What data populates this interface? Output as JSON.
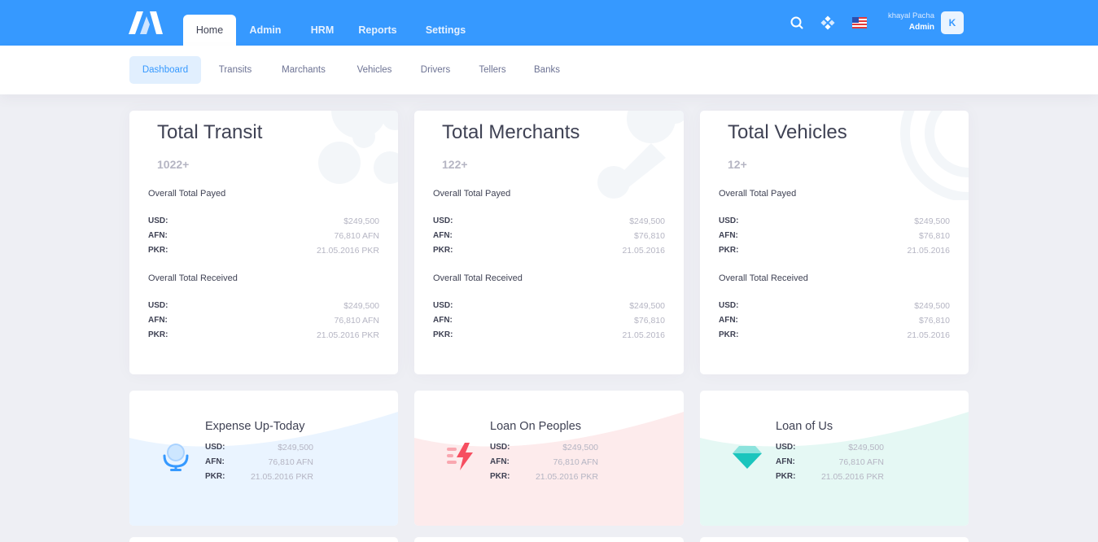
{
  "topbar": {
    "menu": [
      "Home",
      "Admin",
      "HRM",
      "Reports",
      "Settings"
    ],
    "active_menu": "Home",
    "icons": [
      "search-icon",
      "apps-icon",
      "us-flag-icon"
    ],
    "user_name": "khayal Pacha",
    "user_role": "Admin",
    "avatar_letter": "K",
    "color": "#3699ff"
  },
  "subnav": {
    "tabs": [
      "Dashboard",
      "Transits",
      "Marchants",
      "Vehicles",
      "Drivers",
      "Tellers",
      "Banks"
    ],
    "active_tab": "Dashboard"
  },
  "stat_cards": [
    {
      "title": "Total Transit",
      "count": "1022+",
      "payed_label": "Overall Total Payed",
      "received_label": "Overall Total Received",
      "payed": [
        {
          "key": "USD:",
          "value": "$249,500"
        },
        {
          "key": "AFN:",
          "value": "76,810 AFN"
        },
        {
          "key": "PKR:",
          "value": "21.05.2016 PKR"
        }
      ],
      "received": [
        {
          "key": "USD:",
          "value": "$249,500"
        },
        {
          "key": "AFN:",
          "value": "76,810 AFN"
        },
        {
          "key": "PKR:",
          "value": "21.05.2016 PKR"
        }
      ]
    },
    {
      "title": "Total Merchants",
      "count": "122+",
      "payed_label": "Overall Total Payed",
      "received_label": "Overall Total Received",
      "payed": [
        {
          "key": "USD:",
          "value": "$249,500"
        },
        {
          "key": "AFN:",
          "value": "$76,810"
        },
        {
          "key": "PKR:",
          "value": "21.05.2016"
        }
      ],
      "received": [
        {
          "key": "USD:",
          "value": "$249,500"
        },
        {
          "key": "AFN:",
          "value": "$76,810"
        },
        {
          "key": "PKR:",
          "value": "21.05.2016"
        }
      ]
    },
    {
      "title": "Total Vehicles",
      "count": "12+",
      "payed_label": "Overall Total Payed",
      "received_label": "Overall Total Received",
      "payed": [
        {
          "key": "USD:",
          "value": "$249,500"
        },
        {
          "key": "AFN:",
          "value": "$76,810"
        },
        {
          "key": "PKR:",
          "value": "21.05.2016"
        }
      ],
      "received": [
        {
          "key": "USD:",
          "value": "$249,500"
        },
        {
          "key": "AFN:",
          "value": "$76,810"
        },
        {
          "key": "PKR:",
          "value": "21.05.2016"
        }
      ]
    }
  ],
  "summary_cards": [
    {
      "title": "Expense Up-Today",
      "icon": "mirror-stand-icon",
      "color": "#3699ff",
      "bg": "#eaf4ff",
      "rows": [
        {
          "key": "USD:",
          "value": "$249,500"
        },
        {
          "key": "AFN:",
          "value": "76,810 AFN"
        },
        {
          "key": "PKR:",
          "value": "21.05.2016 PKR"
        }
      ]
    },
    {
      "title": "Loan On Peoples",
      "icon": "lightning-icon",
      "color": "#f64e60",
      "bg": "#fdebec",
      "rows": [
        {
          "key": "USD:",
          "value": "$249,500"
        },
        {
          "key": "AFN:",
          "value": "76,810 AFN"
        },
        {
          "key": "PKR:",
          "value": "21.05.2016 PKR"
        }
      ]
    },
    {
      "title": "Loan of Us",
      "icon": "diamond-icon",
      "color": "#1bc5bd",
      "bg": "#e5f8f4",
      "rows": [
        {
          "key": "USD:",
          "value": "$249,500"
        },
        {
          "key": "AFN:",
          "value": "76,810 AFN"
        },
        {
          "key": "PKR:",
          "value": "21.05.2016 PKR"
        }
      ]
    }
  ]
}
